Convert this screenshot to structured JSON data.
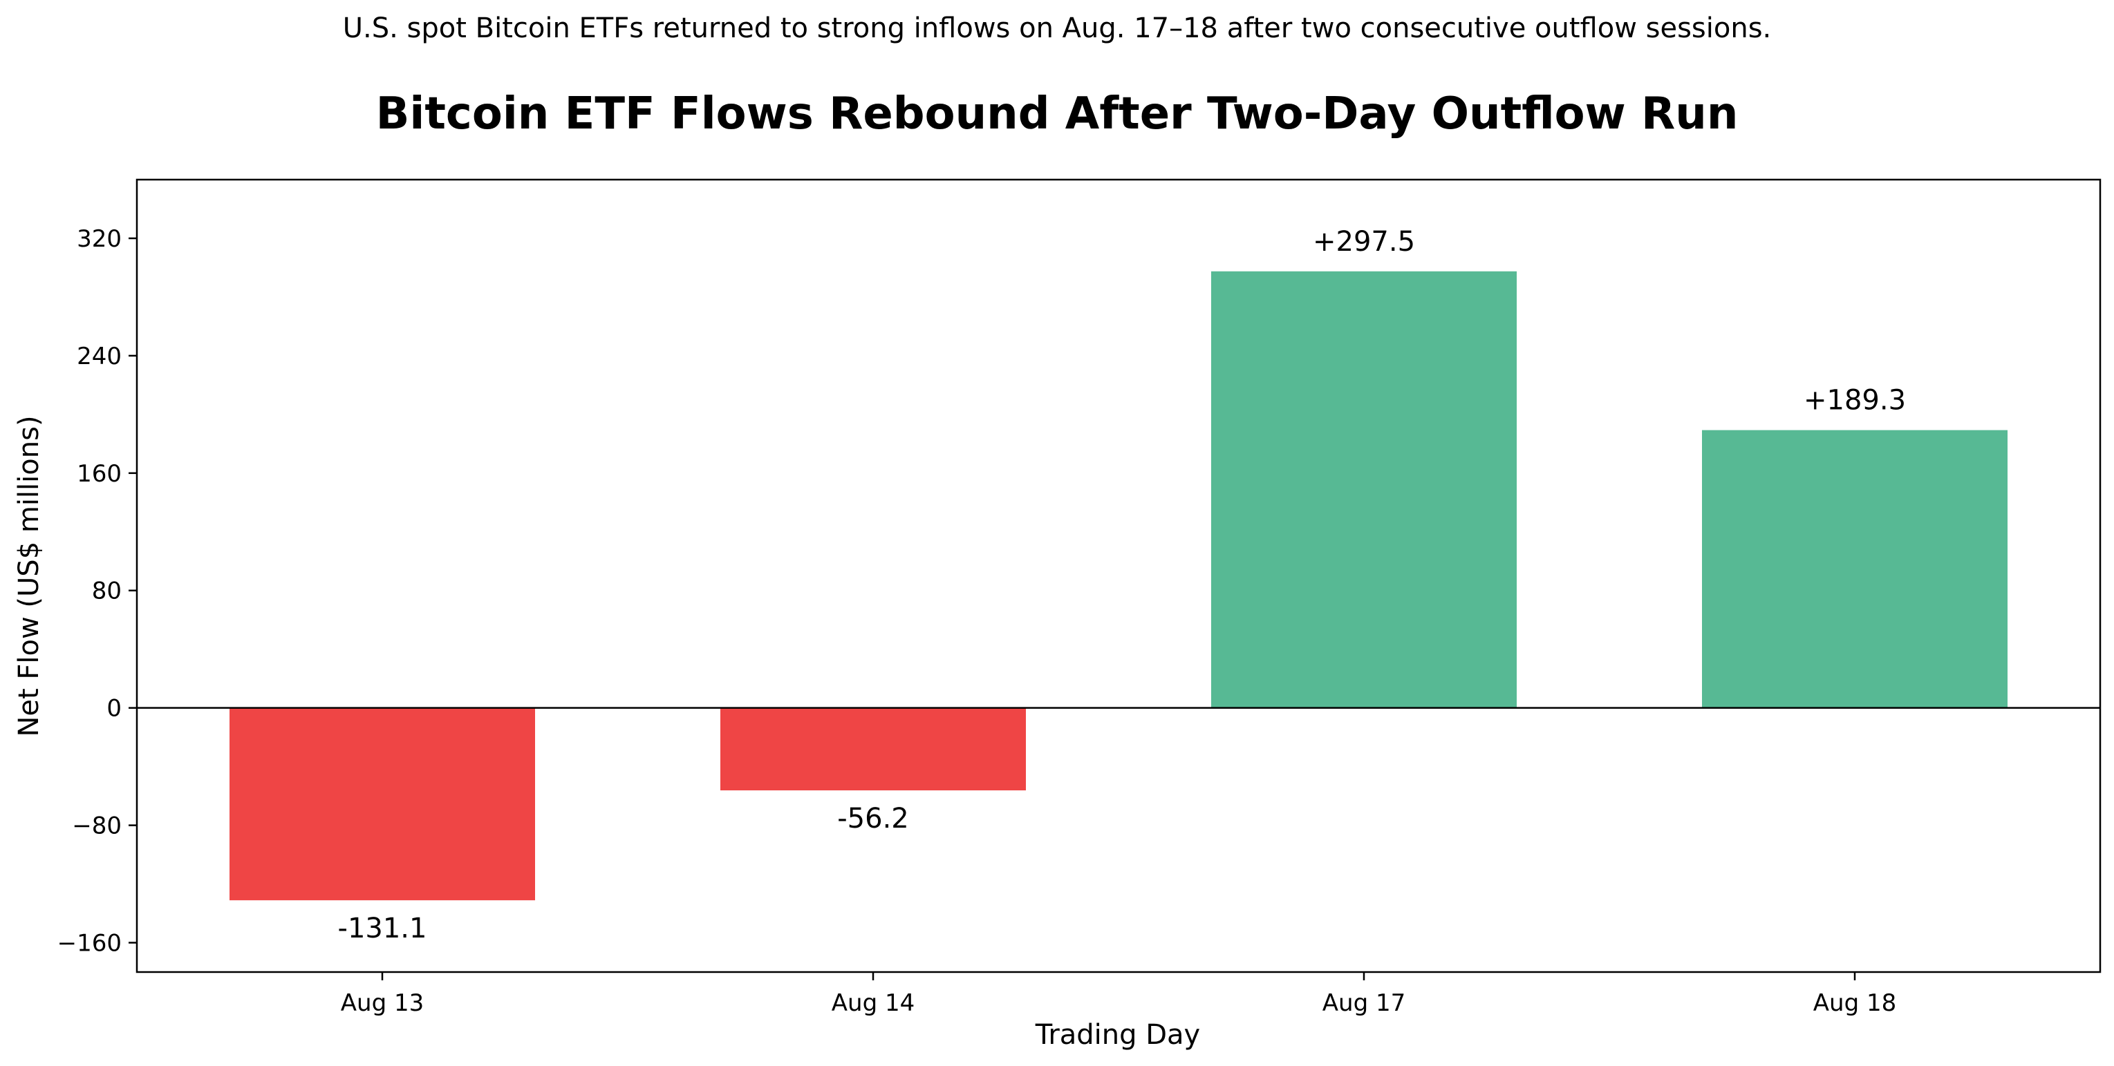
{
  "subtitle": "U.S. spot Bitcoin ETFs returned to strong inflows on Aug. 17–18 after two consecutive outflow sessions.",
  "colors": {
    "positive": "#57b994",
    "negative": "#ef4545",
    "axis": "#000000",
    "zero_line": "#000000"
  },
  "chart_data": {
    "type": "bar",
    "title": "Bitcoin ETF Flows Rebound After Two-Day Outflow Run",
    "xlabel": "Trading Day",
    "ylabel": "Net Flow (US$ millions)",
    "categories": [
      "Aug 13",
      "Aug 14",
      "Aug 17",
      "Aug 18"
    ],
    "values": [
      -131.1,
      -56.2,
      297.5,
      189.3
    ],
    "data_labels": [
      "-131.1",
      "-56.2",
      "+297.5",
      "+189.3"
    ],
    "ylim": [
      -180,
      360
    ],
    "yticks": [
      -160,
      -80,
      0,
      80,
      160,
      240,
      320
    ],
    "ytick_labels": [
      "−160",
      "−80",
      "0",
      "80",
      "160",
      "240",
      "320"
    ],
    "grid": false,
    "legend": false
  }
}
